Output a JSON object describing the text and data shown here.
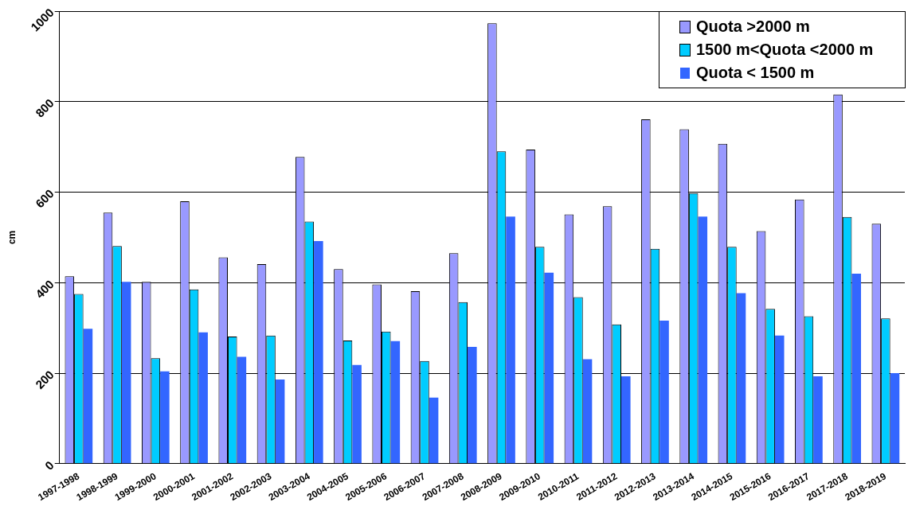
{
  "chart_data": {
    "type": "bar",
    "ylabel": "cm",
    "categories": [
      "1997-1998",
      "1998-1999",
      "1999-2000",
      "2000-2001",
      "2001-2002",
      "2002-2003",
      "2003-2004",
      "2004-2005",
      "2005-2006",
      "2006-2007",
      "2007-2008",
      "2008-2009",
      "2009-2010",
      "2010-2011",
      "2011-2012",
      "2012-2013",
      "2013-2014",
      "2014-2015",
      "2015-2016",
      "2016-2017",
      "2017-2018",
      "2018-2019"
    ],
    "series": [
      {
        "name": "Quota >2000 m",
        "color": "#9999ff",
        "values": [
          414,
          555,
          402,
          580,
          456,
          441,
          678,
          430,
          396,
          381,
          465,
          973,
          694,
          551,
          569,
          761,
          739,
          707,
          514,
          584,
          816,
          530
        ]
      },
      {
        "name": "1500 m<Quota <2000 m",
        "color": "#00ccff",
        "values": [
          375,
          481,
          233,
          385,
          281,
          283,
          535,
          272,
          292,
          227,
          357,
          690,
          479,
          368,
          308,
          475,
          598,
          479,
          342,
          326,
          545,
          321
        ]
      },
      {
        "name": "Quota < 1500 m",
        "color": "#3366ff",
        "values": [
          298,
          402,
          204,
          290,
          236,
          186,
          492,
          218,
          271,
          146,
          258,
          546,
          422,
          231,
          193,
          316,
          546,
          377,
          283,
          193,
          420,
          200
        ]
      }
    ],
    "ylim": [
      0,
      1000
    ],
    "yticks": [
      0,
      200,
      400,
      600,
      800,
      1000
    ],
    "grid": "y",
    "legend": "top right"
  }
}
